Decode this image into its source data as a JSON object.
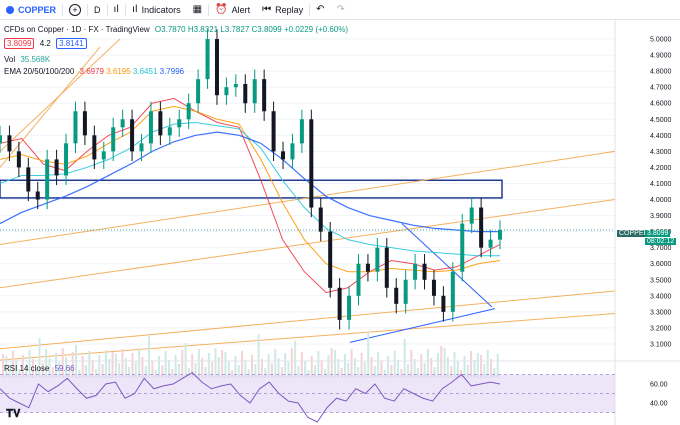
{
  "toolbar": {
    "symbol": "COPPER",
    "add_icon": "plus-circle-icon",
    "interval": "D",
    "indicators_label": "Indicators",
    "alert_label": "Alert",
    "replay_label": "Replay"
  },
  "legend": {
    "title": "CFDs on Copper · 1D · FX · TradingView",
    "open": "O3.7870",
    "high": "H3.8321",
    "low": "L3.7827",
    "close": "C3.8099",
    "change": "+0.0229 (+0.60%)",
    "bid": "3.8099",
    "spread": "4.2",
    "ask": "3.8141",
    "vol_label": "Vol",
    "vol_value": "35.568K",
    "ema_label": "EMA 20/50/100/200",
    "ema20": "3.6979",
    "ema50": "3.6195",
    "ema100": "3.6451",
    "ema200": "3.7996",
    "rsi_label": "RSI 14 close",
    "rsi_value": "59.66"
  },
  "price_tag": {
    "symbol": "COPPER",
    "price": "3.8099",
    "countdown": "08:02:12"
  },
  "colors": {
    "up": "#089981",
    "down": "#131722",
    "ema20": "#f23645",
    "ema50": "#ff9800",
    "ema100": "#26c6da",
    "ema200": "#2962ff",
    "rsi": "#7e57c2",
    "rsi_band": "#e1d5f5"
  },
  "chart_data": {
    "type": "candlestick",
    "y_ticks": [
      5.0,
      4.9,
      4.8,
      4.7,
      4.6,
      4.5,
      4.4,
      4.3,
      4.2,
      4.1,
      4.0,
      3.9,
      3.8,
      3.7,
      3.6,
      3.5,
      3.4,
      3.3,
      3.2,
      3.1
    ],
    "ylim": [
      3.0,
      5.1
    ],
    "rsi_ticks": [
      60.0,
      40.0
    ],
    "rsi_ylim": [
      20,
      80
    ],
    "series": [
      {
        "name": "EMA 20",
        "values": [
          4.35,
          4.38,
          4.22,
          4.18,
          4.3,
          4.4,
          4.45,
          4.6,
          4.63,
          4.55,
          4.48,
          4.45,
          4.12,
          3.75,
          3.55,
          3.42,
          3.45,
          3.55,
          3.62,
          3.6,
          3.56,
          3.58,
          3.65,
          3.72
        ]
      },
      {
        "name": "EMA 50",
        "values": [
          4.25,
          4.28,
          4.24,
          4.22,
          4.27,
          4.35,
          4.42,
          4.55,
          4.58,
          4.55,
          4.5,
          4.47,
          4.25,
          3.98,
          3.75,
          3.6,
          3.55,
          3.55,
          3.57,
          3.56,
          3.55,
          3.56,
          3.6,
          3.62
        ]
      },
      {
        "name": "EMA 100",
        "values": [
          4.1,
          4.15,
          4.15,
          4.16,
          4.2,
          4.25,
          4.32,
          4.42,
          4.47,
          4.48,
          4.46,
          4.44,
          4.32,
          4.12,
          3.95,
          3.82,
          3.75,
          3.72,
          3.7,
          3.68,
          3.67,
          3.66,
          3.65,
          3.65
        ]
      },
      {
        "name": "EMA 200",
        "values": [
          3.85,
          3.92,
          3.97,
          4.02,
          4.08,
          4.15,
          4.22,
          4.3,
          4.36,
          4.4,
          4.42,
          4.4,
          4.35,
          4.25,
          4.13,
          4.02,
          3.95,
          3.9,
          3.87,
          3.84,
          3.82,
          3.81,
          3.8,
          3.8
        ]
      }
    ],
    "closes": [
      4.4,
      4.3,
      4.2,
      4.05,
      4.0,
      4.25,
      4.15,
      4.35,
      4.55,
      4.4,
      4.25,
      4.3,
      4.45,
      4.5,
      4.3,
      4.35,
      4.55,
      4.4,
      4.45,
      4.5,
      4.6,
      4.75,
      5.0,
      4.65,
      4.7,
      4.72,
      4.6,
      4.75,
      4.55,
      4.3,
      4.25,
      4.35,
      4.5,
      3.95,
      3.8,
      3.45,
      3.25,
      3.4,
      3.6,
      3.55,
      3.7,
      3.45,
      3.35,
      3.5,
      3.6,
      3.5,
      3.4,
      3.3,
      3.55,
      3.85,
      3.95,
      3.7,
      3.75,
      3.81
    ],
    "rsi": [
      55,
      45,
      40,
      35,
      60,
      52,
      58,
      66,
      55,
      45,
      48,
      60,
      62,
      45,
      50,
      66,
      55,
      58,
      60,
      66,
      72,
      62,
      55,
      58,
      60,
      48,
      40,
      55,
      62,
      50,
      42,
      40,
      25,
      20,
      35,
      45,
      42,
      55,
      50,
      60,
      45,
      42,
      55,
      50,
      45,
      42,
      55,
      62,
      70,
      58,
      60,
      62,
      60
    ]
  }
}
